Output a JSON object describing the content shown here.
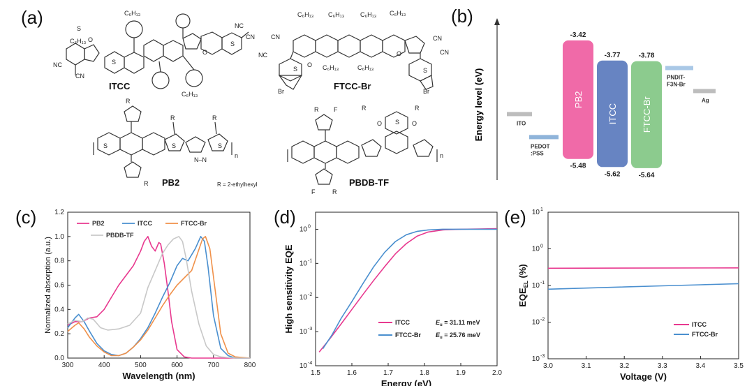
{
  "panels": {
    "a": "(a)",
    "b": "(b)",
    "c": "(c)",
    "d": "(d)",
    "e": "(e)"
  },
  "molecules": {
    "itcc": {
      "name": "ITCC",
      "c6h13": "C₆H₁₃",
      "cn": "CN",
      "nc": "NC",
      "s": "S",
      "o": "O"
    },
    "ftcc": {
      "name": "FTCC-Br",
      "c6h13": "C₆H₁₃",
      "cn": "CN",
      "nc": "NC",
      "s": "S",
      "o": "O",
      "br": "Br"
    },
    "pb2": {
      "name": "PB2",
      "r": "R",
      "n": "n",
      "s": "S",
      "nn": "N–N",
      "note": "R = 2-ethylhexyl"
    },
    "pbdb": {
      "name": "PBDB-TF",
      "r": "R",
      "f": "F",
      "n": "n",
      "s": "S",
      "o": "O"
    }
  },
  "energy_diagram": {
    "ylabel": "Energy level (eV)",
    "levels": [
      {
        "name": "ITO",
        "color": "#bdbdbd",
        "type": "line",
        "value": -4.7
      },
      {
        "name": "PEDOT:PSS",
        "label1": "PEDOT",
        "label2": ":PSS",
        "color": "#8fb4da",
        "type": "line",
        "value": -5.1
      },
      {
        "name": "PB2",
        "color": "#f06aa8",
        "type": "box",
        "lumo": -3.42,
        "homo": -5.48,
        "lumo_label": "-3.42",
        "homo_label": "-5.48"
      },
      {
        "name": "ITCC",
        "color": "#6784c2",
        "type": "box",
        "lumo": -3.77,
        "homo": -5.62,
        "lumo_label": "-3.77",
        "homo_label": "-5.62"
      },
      {
        "name": "FTCC-Br",
        "color": "#8ccb8e",
        "type": "box",
        "lumo": -3.78,
        "homo": -5.64,
        "lumo_label": "-3.78",
        "homo_label": "-5.64"
      },
      {
        "name": "PNDIT-F3N-Br",
        "label1": "PNDIT-",
        "label2": "F3N-Br",
        "color": "#a9c8e6",
        "type": "line",
        "value": -3.9
      },
      {
        "name": "Ag",
        "color": "#bdbdbd",
        "type": "line",
        "value": -4.3
      }
    ]
  },
  "chart_data": [
    {
      "id": "c",
      "type": "line",
      "xlabel": "Wavelength (nm)",
      "ylabel": "Normalized absorption (a.u.)",
      "xlim": [
        300,
        800
      ],
      "ylim": [
        0.0,
        1.2
      ],
      "xticks": [
        "300",
        "400",
        "500",
        "600",
        "700",
        "800"
      ],
      "yticks": [
        "0.0",
        "0.2",
        "0.4",
        "0.6",
        "0.8",
        "1.0",
        "1.2"
      ],
      "series": [
        {
          "name": "PB2",
          "color": "#e8398f",
          "x": [
            300,
            320,
            340,
            360,
            380,
            400,
            420,
            440,
            460,
            480,
            500,
            510,
            520,
            530,
            540,
            550,
            555,
            565,
            575,
            585,
            600,
            620,
            640,
            700,
            800
          ],
          "y": [
            0.27,
            0.3,
            0.3,
            0.33,
            0.34,
            0.4,
            0.5,
            0.6,
            0.68,
            0.76,
            0.88,
            0.96,
            1.0,
            0.92,
            0.88,
            0.95,
            0.94,
            0.78,
            0.55,
            0.3,
            0.07,
            0.01,
            0.0,
            0.0,
            0.0
          ]
        },
        {
          "name": "ITCC",
          "color": "#4a8fcf",
          "x": [
            300,
            320,
            330,
            345,
            360,
            380,
            400,
            420,
            440,
            460,
            480,
            500,
            520,
            540,
            560,
            580,
            600,
            615,
            630,
            650,
            665,
            675,
            685,
            700,
            720,
            740,
            760,
            800
          ],
          "y": [
            0.25,
            0.33,
            0.36,
            0.3,
            0.22,
            0.12,
            0.06,
            0.03,
            0.02,
            0.04,
            0.09,
            0.16,
            0.25,
            0.37,
            0.5,
            0.62,
            0.76,
            0.82,
            0.8,
            0.9,
            1.0,
            0.96,
            0.75,
            0.35,
            0.08,
            0.02,
            0.0,
            0.0
          ]
        },
        {
          "name": "FTCC-Br",
          "color": "#f0914a",
          "x": [
            300,
            320,
            330,
            345,
            360,
            380,
            400,
            420,
            440,
            460,
            480,
            500,
            520,
            540,
            560,
            580,
            600,
            620,
            640,
            655,
            670,
            678,
            690,
            705,
            720,
            740,
            760,
            800
          ],
          "y": [
            0.22,
            0.27,
            0.29,
            0.24,
            0.17,
            0.1,
            0.05,
            0.02,
            0.02,
            0.04,
            0.09,
            0.15,
            0.23,
            0.33,
            0.43,
            0.52,
            0.6,
            0.66,
            0.72,
            0.85,
            0.98,
            1.0,
            0.9,
            0.55,
            0.2,
            0.04,
            0.01,
            0.0
          ]
        },
        {
          "name": "PBDB-TF",
          "color": "#c8c8c8",
          "x": [
            300,
            320,
            340,
            355,
            370,
            390,
            410,
            440,
            470,
            500,
            520,
            540,
            560,
            575,
            590,
            605,
            615,
            625,
            640,
            660,
            680,
            700,
            720,
            760,
            800
          ],
          "y": [
            0.28,
            0.31,
            0.3,
            0.33,
            0.32,
            0.25,
            0.23,
            0.24,
            0.27,
            0.37,
            0.58,
            0.72,
            0.86,
            0.93,
            0.98,
            1.0,
            0.96,
            0.82,
            0.55,
            0.28,
            0.1,
            0.03,
            0.01,
            0.0,
            0.0
          ]
        }
      ]
    },
    {
      "id": "d",
      "type": "line",
      "xlabel": "Energy (eV)",
      "ylabel": "High sensitivity EQE",
      "xlim": [
        1.5,
        2.0
      ],
      "ylim_log10": [
        -4,
        0.5
      ],
      "xticks": [
        "1.5",
        "1.6",
        "1.7",
        "1.8",
        "1.9",
        "2.0"
      ],
      "yticks": [
        "10",
        "10",
        "10",
        "10",
        "10"
      ],
      "ytick_exps": [
        "-4",
        "-3",
        "-2",
        "-1",
        "0"
      ],
      "legend": [
        {
          "name": "ITCC",
          "color": "#e8398f",
          "eu_label": "E",
          "eu_sub": "u",
          "eu_value": "= 31.11 meV"
        },
        {
          "name": "FTCC-Br",
          "color": "#4a8fcf",
          "eu_label": "E",
          "eu_sub": "u",
          "eu_value": "= 25.76  meV"
        }
      ],
      "series": [
        {
          "name": "ITCC",
          "color": "#e8398f",
          "x": [
            1.51,
            1.54,
            1.57,
            1.6,
            1.63,
            1.66,
            1.69,
            1.72,
            1.75,
            1.78,
            1.81,
            1.85,
            1.9,
            1.95,
            2.0
          ],
          "log10y": [
            -3.6,
            -3.2,
            -2.78,
            -2.35,
            -1.92,
            -1.5,
            -1.1,
            -0.72,
            -0.42,
            -0.2,
            -0.08,
            -0.02,
            0.0,
            0.01,
            0.02
          ]
        },
        {
          "name": "FTCC-Br",
          "color": "#4a8fcf",
          "x": [
            1.52,
            1.545,
            1.57,
            1.6,
            1.63,
            1.66,
            1.69,
            1.72,
            1.75,
            1.78,
            1.81,
            1.85,
            1.9,
            1.95,
            2.0
          ],
          "log10y": [
            -3.5,
            -3.1,
            -2.62,
            -2.12,
            -1.6,
            -1.1,
            -0.68,
            -0.36,
            -0.16,
            -0.06,
            -0.02,
            0.0,
            0.0,
            0.0,
            0.0
          ]
        }
      ]
    },
    {
      "id": "e",
      "type": "line",
      "xlabel": "Voltage (V)",
      "ylabel": "EQE",
      "ylabel_sub": "EL",
      "ylabel_unit": " (%)",
      "xlim": [
        3.0,
        3.5
      ],
      "ylim_log10": [
        -3,
        1
      ],
      "xticks": [
        "3.0",
        "3.1",
        "3.2",
        "3.3",
        "3.4",
        "3.5"
      ],
      "yticks": [
        "10",
        "10",
        "10",
        "10",
        "10"
      ],
      "ytick_exps": [
        "-3",
        "-2",
        "-1",
        "0",
        "1"
      ],
      "legend": [
        {
          "name": "ITCC",
          "color": "#e8398f"
        },
        {
          "name": "FTCC-Br",
          "color": "#4a8fcf"
        }
      ],
      "series": [
        {
          "name": "ITCC",
          "color": "#e8398f",
          "x": [
            3.0,
            3.5
          ],
          "log10y": [
            -0.53,
            -0.52
          ]
        },
        {
          "name": "FTCC-Br",
          "color": "#4a8fcf",
          "x": [
            3.0,
            3.1,
            3.2,
            3.3,
            3.4,
            3.5
          ],
          "log10y": [
            -1.1,
            -1.07,
            -1.04,
            -1.01,
            -0.98,
            -0.95
          ]
        }
      ]
    }
  ]
}
